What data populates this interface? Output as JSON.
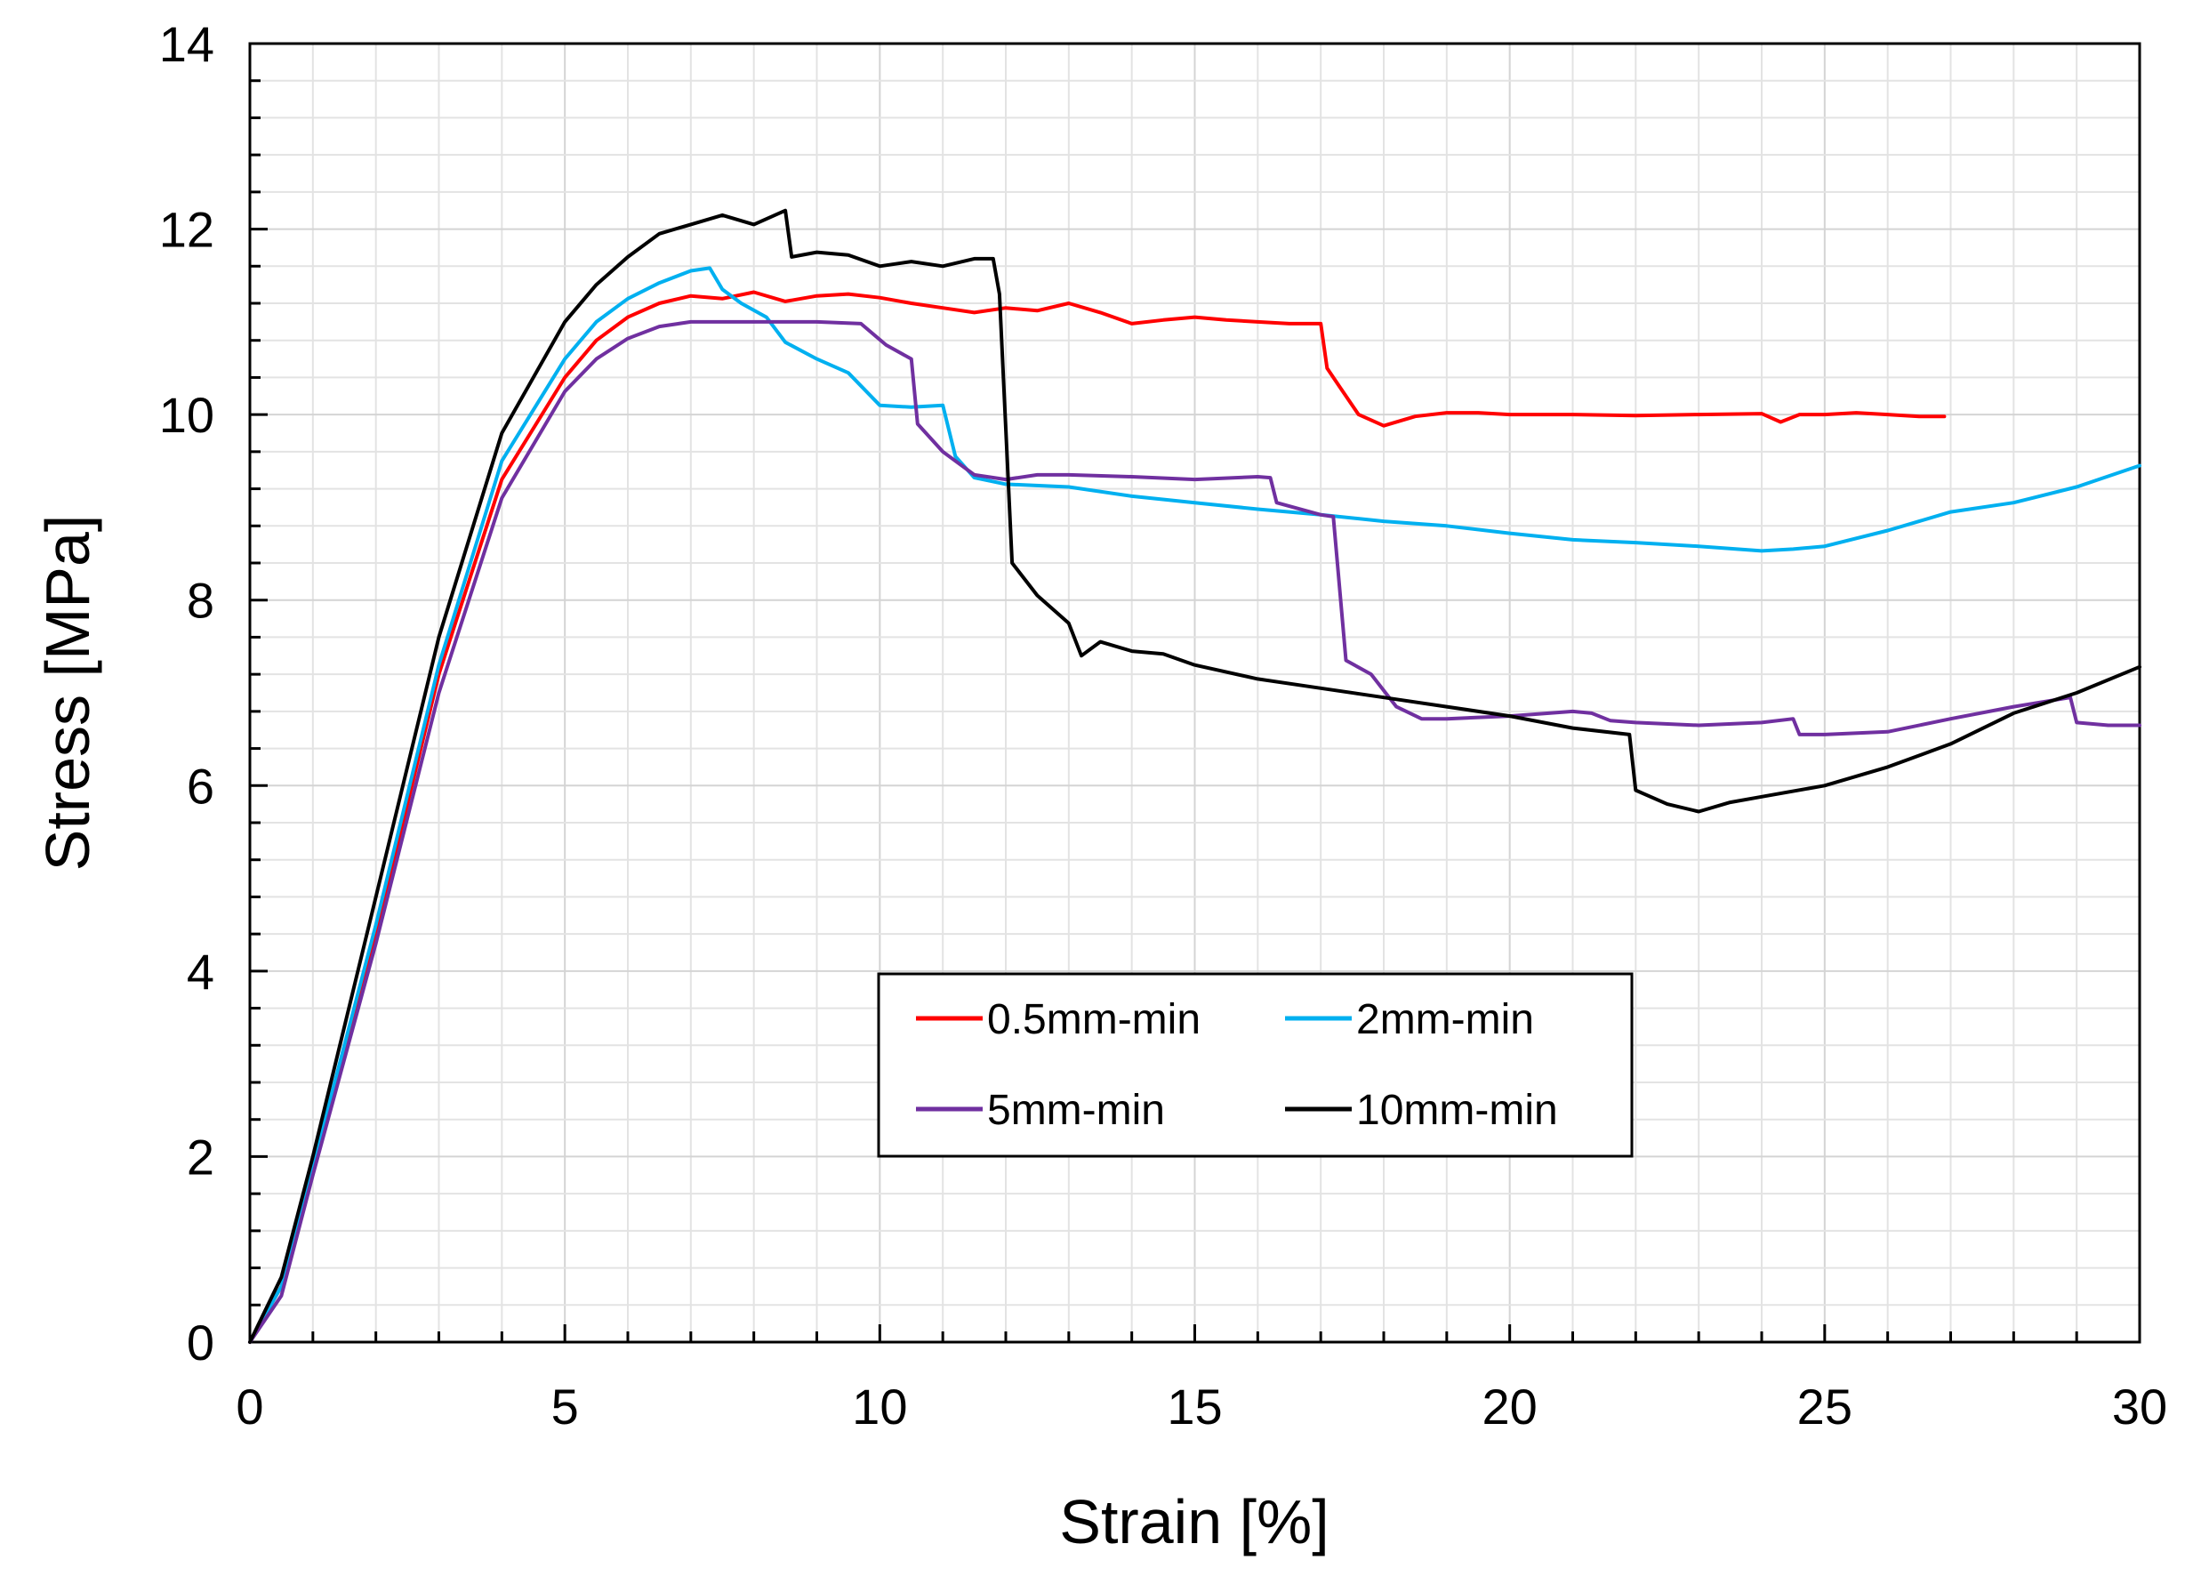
{
  "chart_data": {
    "type": "line",
    "title": "",
    "xlabel": "Strain [%]",
    "ylabel": "Stress [MPa]",
    "xlim": [
      0,
      30
    ],
    "ylim": [
      0,
      14
    ],
    "xticks": [
      0,
      5,
      10,
      15,
      20,
      25,
      30
    ],
    "yticks": [
      0,
      2,
      4,
      6,
      8,
      10,
      12,
      14
    ],
    "x_minor_step": 1,
    "y_minor_step": 0.4,
    "grid": true,
    "legend_position": "center-bottom",
    "series": [
      {
        "name": "0.5mm-min",
        "color": "#ff0000",
        "points": [
          [
            0,
            0
          ],
          [
            0.5,
            0.6
          ],
          [
            1,
            1.9
          ],
          [
            2,
            4.4
          ],
          [
            3,
            7.2
          ],
          [
            4,
            9.3
          ],
          [
            5,
            10.4
          ],
          [
            5.5,
            10.8
          ],
          [
            6,
            11.05
          ],
          [
            6.5,
            11.2
          ],
          [
            7,
            11.28
          ],
          [
            7.5,
            11.25
          ],
          [
            8,
            11.32
          ],
          [
            8.5,
            11.22
          ],
          [
            9,
            11.28
          ],
          [
            9.5,
            11.3
          ],
          [
            10,
            11.26
          ],
          [
            10.5,
            11.2
          ],
          [
            11,
            11.15
          ],
          [
            11.5,
            11.1
          ],
          [
            12,
            11.15
          ],
          [
            12.5,
            11.12
          ],
          [
            13,
            11.2
          ],
          [
            13.5,
            11.1
          ],
          [
            14,
            10.98
          ],
          [
            14.5,
            11.02
          ],
          [
            15,
            11.05
          ],
          [
            15.5,
            11.02
          ],
          [
            16,
            11.0
          ],
          [
            16.5,
            10.98
          ],
          [
            17,
            10.98
          ],
          [
            17.1,
            10.5
          ],
          [
            17.3,
            10.3
          ],
          [
            17.6,
            10.0
          ],
          [
            18,
            9.88
          ],
          [
            18.5,
            9.98
          ],
          [
            19,
            10.02
          ],
          [
            19.5,
            10.02
          ],
          [
            20,
            10.0
          ],
          [
            21,
            10.0
          ],
          [
            22,
            9.99
          ],
          [
            23,
            10.0
          ],
          [
            24,
            10.01
          ],
          [
            24.3,
            9.92
          ],
          [
            24.6,
            10.0
          ],
          [
            25,
            10.0
          ],
          [
            25.5,
            10.02
          ],
          [
            26,
            10.0
          ],
          [
            26.5,
            9.98
          ],
          [
            26.9,
            9.98
          ]
        ]
      },
      {
        "name": "2mm-min",
        "color": "#00b0f0",
        "points": [
          [
            0,
            0
          ],
          [
            0.5,
            0.6
          ],
          [
            1,
            1.9
          ],
          [
            2,
            4.5
          ],
          [
            3,
            7.3
          ],
          [
            4,
            9.5
          ],
          [
            5,
            10.6
          ],
          [
            5.5,
            11.0
          ],
          [
            6,
            11.25
          ],
          [
            6.5,
            11.42
          ],
          [
            7,
            11.55
          ],
          [
            7.3,
            11.58
          ],
          [
            7.5,
            11.35
          ],
          [
            7.8,
            11.2
          ],
          [
            8.2,
            11.05
          ],
          [
            8.5,
            10.78
          ],
          [
            9,
            10.6
          ],
          [
            9.5,
            10.45
          ],
          [
            10,
            10.1
          ],
          [
            10.5,
            10.08
          ],
          [
            11,
            10.1
          ],
          [
            11.2,
            9.55
          ],
          [
            11.5,
            9.32
          ],
          [
            12,
            9.25
          ],
          [
            13,
            9.22
          ],
          [
            14,
            9.12
          ],
          [
            15,
            9.05
          ],
          [
            16,
            8.98
          ],
          [
            17,
            8.92
          ],
          [
            18,
            8.85
          ],
          [
            19,
            8.8
          ],
          [
            20,
            8.72
          ],
          [
            21,
            8.65
          ],
          [
            22,
            8.62
          ],
          [
            23,
            8.58
          ],
          [
            24,
            8.53
          ],
          [
            24.5,
            8.55
          ],
          [
            25,
            8.58
          ],
          [
            26,
            8.75
          ],
          [
            27,
            8.95
          ],
          [
            28,
            9.05
          ],
          [
            29,
            9.22
          ],
          [
            30,
            9.45
          ]
        ]
      },
      {
        "name": "5mm-min",
        "color": "#7030a0",
        "points": [
          [
            0,
            0
          ],
          [
            0.5,
            0.5
          ],
          [
            1,
            1.8
          ],
          [
            2,
            4.3
          ],
          [
            3,
            7.0
          ],
          [
            4,
            9.1
          ],
          [
            5,
            10.25
          ],
          [
            5.5,
            10.6
          ],
          [
            6,
            10.82
          ],
          [
            6.5,
            10.95
          ],
          [
            7,
            11.0
          ],
          [
            8,
            11.0
          ],
          [
            9,
            11.0
          ],
          [
            9.7,
            10.98
          ],
          [
            10.1,
            10.75
          ],
          [
            10.5,
            10.6
          ],
          [
            10.6,
            9.9
          ],
          [
            11,
            9.6
          ],
          [
            11.5,
            9.35
          ],
          [
            12,
            9.3
          ],
          [
            12.5,
            9.35
          ],
          [
            13,
            9.35
          ],
          [
            14,
            9.33
          ],
          [
            15,
            9.3
          ],
          [
            16,
            9.33
          ],
          [
            16.2,
            9.32
          ],
          [
            16.3,
            9.05
          ],
          [
            17,
            8.92
          ],
          [
            17.2,
            8.9
          ],
          [
            17.4,
            7.35
          ],
          [
            17.8,
            7.2
          ],
          [
            18.2,
            6.85
          ],
          [
            18.6,
            6.72
          ],
          [
            19,
            6.72
          ],
          [
            20,
            6.75
          ],
          [
            21,
            6.8
          ],
          [
            21.3,
            6.78
          ],
          [
            21.6,
            6.7
          ],
          [
            22,
            6.68
          ],
          [
            23,
            6.65
          ],
          [
            24,
            6.68
          ],
          [
            24.5,
            6.72
          ],
          [
            24.6,
            6.55
          ],
          [
            25,
            6.55
          ],
          [
            26,
            6.58
          ],
          [
            27,
            6.72
          ],
          [
            28,
            6.85
          ],
          [
            28.9,
            6.95
          ],
          [
            29,
            6.68
          ],
          [
            29.5,
            6.65
          ],
          [
            30,
            6.65
          ]
        ]
      },
      {
        "name": "10mm-min",
        "color": "#000000",
        "points": [
          [
            0,
            0
          ],
          [
            0.5,
            0.7
          ],
          [
            1,
            2.0
          ],
          [
            2,
            4.8
          ],
          [
            3,
            7.6
          ],
          [
            4,
            9.8
          ],
          [
            5,
            11.0
          ],
          [
            5.5,
            11.4
          ],
          [
            6,
            11.7
          ],
          [
            6.5,
            11.95
          ],
          [
            7,
            12.05
          ],
          [
            7.5,
            12.15
          ],
          [
            8,
            12.05
          ],
          [
            8.5,
            12.2
          ],
          [
            8.6,
            11.7
          ],
          [
            9,
            11.75
          ],
          [
            9.5,
            11.72
          ],
          [
            10,
            11.6
          ],
          [
            10.5,
            11.65
          ],
          [
            11,
            11.6
          ],
          [
            11.5,
            11.68
          ],
          [
            11.8,
            11.68
          ],
          [
            11.9,
            11.3
          ],
          [
            12.1,
            8.4
          ],
          [
            12.5,
            8.05
          ],
          [
            13,
            7.75
          ],
          [
            13.2,
            7.4
          ],
          [
            13.5,
            7.55
          ],
          [
            14,
            7.45
          ],
          [
            14.5,
            7.42
          ],
          [
            15,
            7.3
          ],
          [
            16,
            7.15
          ],
          [
            17,
            7.05
          ],
          [
            18,
            6.95
          ],
          [
            19,
            6.85
          ],
          [
            20,
            6.75
          ],
          [
            21,
            6.62
          ],
          [
            21.9,
            6.55
          ],
          [
            22,
            5.95
          ],
          [
            22.5,
            5.8
          ],
          [
            23,
            5.72
          ],
          [
            23.5,
            5.82
          ],
          [
            24,
            5.88
          ],
          [
            25,
            6.0
          ],
          [
            26,
            6.2
          ],
          [
            27,
            6.45
          ],
          [
            28,
            6.78
          ],
          [
            29,
            7.0
          ],
          [
            30,
            7.28
          ]
        ]
      }
    ]
  }
}
